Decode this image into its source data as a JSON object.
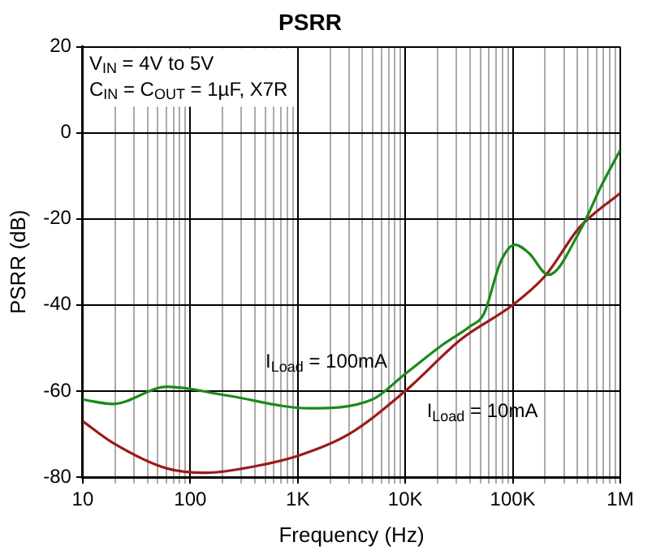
{
  "chart_data": {
    "type": "line",
    "title": "PSRR",
    "xlabel": "Frequency (Hz)",
    "ylabel": "PSRR (dB)",
    "annotations": [
      "V$_{IN}$ = 4V to 5V",
      "C$_{IN}$ = C$_{OUT}$ = 1µF, X7R"
    ],
    "log": "x",
    "grid": true,
    "legend": false,
    "marker": "none",
    "line_style": "solid",
    "xlim": [
      10,
      1000000
    ],
    "ylim": [
      -80,
      20
    ],
    "xticks": [
      {
        "value": 10,
        "label": "10"
      },
      {
        "value": 20,
        "label": null
      },
      {
        "value": 30,
        "label": null
      },
      {
        "value": 40,
        "label": null
      },
      {
        "value": 50,
        "label": null
      },
      {
        "value": 60,
        "label": null
      },
      {
        "value": 70,
        "label": null
      },
      {
        "value": 80,
        "label": null
      },
      {
        "value": 90,
        "label": null
      },
      {
        "value": 100,
        "label": "100"
      },
      {
        "value": 200,
        "label": null
      },
      {
        "value": 300,
        "label": null
      },
      {
        "value": 400,
        "label": null
      },
      {
        "value": 500,
        "label": null
      },
      {
        "value": 600,
        "label": null
      },
      {
        "value": 700,
        "label": null
      },
      {
        "value": 800,
        "label": null
      },
      {
        "value": 900,
        "label": null
      },
      {
        "value": 1000,
        "label": "1K"
      },
      {
        "value": 2000,
        "label": null
      },
      {
        "value": 3000,
        "label": null
      },
      {
        "value": 4000,
        "label": null
      },
      {
        "value": 5000,
        "label": null
      },
      {
        "value": 6000,
        "label": null
      },
      {
        "value": 7000,
        "label": null
      },
      {
        "value": 8000,
        "label": null
      },
      {
        "value": 9000,
        "label": null
      },
      {
        "value": 10000,
        "label": "10K"
      },
      {
        "value": 20000,
        "label": null
      },
      {
        "value": 30000,
        "label": null
      },
      {
        "value": 40000,
        "label": null
      },
      {
        "value": 50000,
        "label": null
      },
      {
        "value": 60000,
        "label": null
      },
      {
        "value": 70000,
        "label": null
      },
      {
        "value": 80000,
        "label": null
      },
      {
        "value": 90000,
        "label": null
      },
      {
        "value": 100000,
        "label": "100K"
      },
      {
        "value": 200000,
        "label": null
      },
      {
        "value": 300000,
        "label": null
      },
      {
        "value": 400000,
        "label": null
      },
      {
        "value": 500000,
        "label": null
      },
      {
        "value": 600000,
        "label": null
      },
      {
        "value": 700000,
        "label": null
      },
      {
        "value": 800000,
        "label": null
      },
      {
        "value": 900000,
        "label": null
      },
      {
        "value": 1000000,
        "label": "1M"
      }
    ],
    "yticks": [
      20,
      0,
      -20,
      -40,
      -60,
      -80
    ],
    "series": [
      {
        "name": "I$_{Load}$ = 100mA",
        "color": "#1a8a1a",
        "x": [
          10,
          19,
          61,
          215,
          1290,
          4900,
          10000,
          23000,
          40000,
          54000,
          77000,
          105000,
          142000,
          215000,
          417000,
          676000,
          1000000
        ],
        "values": [
          -62,
          -63,
          -59,
          -61,
          -64,
          -62,
          -56,
          -49,
          -45,
          -42,
          -30,
          -26,
          -28,
          -33,
          -23,
          -12,
          -4
        ]
      },
      {
        "name": "I$_{Load}$ = 10mA",
        "color": "#9b1b1b",
        "x": [
          10,
          19,
          61,
          141,
          309,
          1020,
          3000,
          10000,
          33000,
          100000,
          204000,
          417000,
          1000000
        ],
        "values": [
          -67,
          -72,
          -78,
          -79,
          -78,
          -75,
          -70,
          -60,
          -48,
          -40,
          -33,
          -22,
          -14
        ]
      }
    ]
  }
}
